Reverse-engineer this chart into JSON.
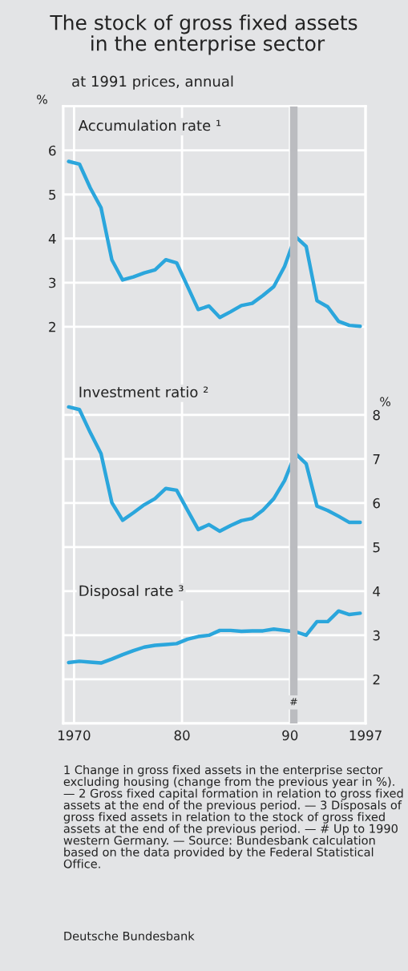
{
  "chart_data": {
    "type": "line",
    "title": "The stock of gross fixed assets\n in the enterprise sector",
    "subtitle": "at 1991 prices, annual",
    "ylabel": "%",
    "y2label": "%",
    "x": [
      1969.5,
      1970.5,
      1971.5,
      1972.5,
      1973.5,
      1974.5,
      1975.5,
      1976.5,
      1977.5,
      1978.5,
      1979.5,
      1980.5,
      1981.5,
      1982.5,
      1983.5,
      1984.5,
      1985.5,
      1986.5,
      1987.5,
      1988.5,
      1989.5,
      1990.5,
      1991.5,
      1992.5,
      1993.5,
      1994.5,
      1995.5,
      1996.5
    ],
    "xlim": [
      1969,
      1997
    ],
    "xticks": [
      1970,
      {
        "value": 1980,
        "label": "80"
      },
      {
        "value": 1990,
        "label": "90"
      },
      1997
    ],
    "ylim": [
      -7,
      7
    ],
    "yticks": [
      2,
      3,
      4,
      5,
      6
    ],
    "y2lim": [
      1,
      15
    ],
    "y2ticks": [
      2,
      3,
      4,
      5,
      6,
      7,
      8
    ],
    "grid": true,
    "series": [
      {
        "name": "Accumulation rate ¹",
        "color": "#2ba6dc",
        "values": [
          5.75,
          5.69,
          5.15,
          4.7,
          3.52,
          3.06,
          3.13,
          3.22,
          3.29,
          3.52,
          3.45,
          2.92,
          2.39,
          2.47,
          2.21,
          2.34,
          2.48,
          2.53,
          2.71,
          2.91,
          3.37,
          4.05,
          3.82,
          2.59,
          2.45,
          2.12,
          2.03,
          2.01
        ]
      },
      {
        "name": "Investment ratio ²",
        "color": "#2ba6dc",
        "axis": "y2",
        "values": [
          8.18,
          8.12,
          7.6,
          7.12,
          6.01,
          5.61,
          5.78,
          5.96,
          6.1,
          6.33,
          6.29,
          5.84,
          5.4,
          5.51,
          5.36,
          5.49,
          5.6,
          5.65,
          5.84,
          6.1,
          6.51,
          7.12,
          6.89,
          5.93,
          5.83,
          5.7,
          5.56,
          5.56
        ]
      },
      {
        "name": "Disposal rate ³",
        "color": "#2ba6dc",
        "axis": "y2",
        "values": [
          2.38,
          2.41,
          2.39,
          2.37,
          2.46,
          2.56,
          2.65,
          2.73,
          2.77,
          2.79,
          2.81,
          2.91,
          2.97,
          3.0,
          3.11,
          3.11,
          3.09,
          3.1,
          3.1,
          3.14,
          3.11,
          3.08,
          3.0,
          3.31,
          3.31,
          3.55,
          3.47,
          3.5
        ]
      }
    ],
    "bands": [
      {
        "axis": "x",
        "from": 1990.0,
        "to": 1990.7,
        "label": "#",
        "color": "#bbbcc0"
      }
    ],
    "annotations": [
      "1 Change in gross fixed assets in the enterprise sector excluding housing (change from the previous year in %). — 2 Gross fixed capital formation in relation to gross fixed assets at the end of the previous period. — 3 Disposals of gross fixed assets in relation to the stock of gross fixed assets at the end of the previous period. — # Up to 1990 western Germany. — Source: Bundesbank calculation based on the data provided by the Federal Statistical Office.",
      "Deutsche Bundesbank"
    ]
  }
}
